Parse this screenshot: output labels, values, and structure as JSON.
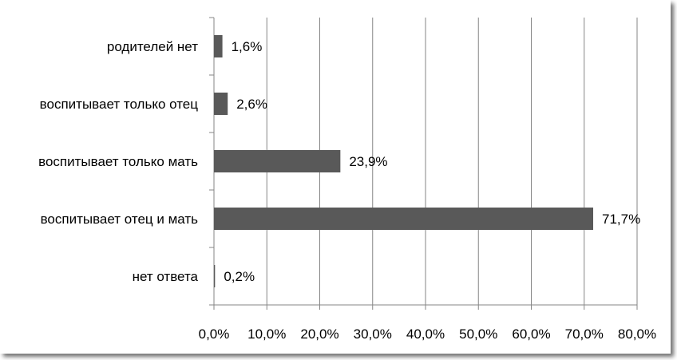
{
  "chart_data": {
    "type": "bar",
    "orientation": "horizontal",
    "categories": [
      "родителей нет",
      "воспитывает только отец",
      "воспитывает только мать",
      "воспитывает отец и мать",
      "нет ответа"
    ],
    "values": [
      1.6,
      2.6,
      23.9,
      71.7,
      0.2
    ],
    "value_labels": [
      "1,6%",
      "2,6%",
      "23,9%",
      "71,7%",
      "0,2%"
    ],
    "x_ticks": [
      "0,0%",
      "10,0%",
      "20,0%",
      "30,0%",
      "40,0%",
      "50,0%",
      "60,0%",
      "70,0%",
      "80,0%"
    ],
    "xlim": [
      0,
      80
    ],
    "grid": true,
    "legend": "none",
    "title": "",
    "xlabel": "",
    "ylabel": "",
    "colors": {
      "bar": "#595959",
      "grid": "#868686",
      "axis": "#868686"
    }
  }
}
